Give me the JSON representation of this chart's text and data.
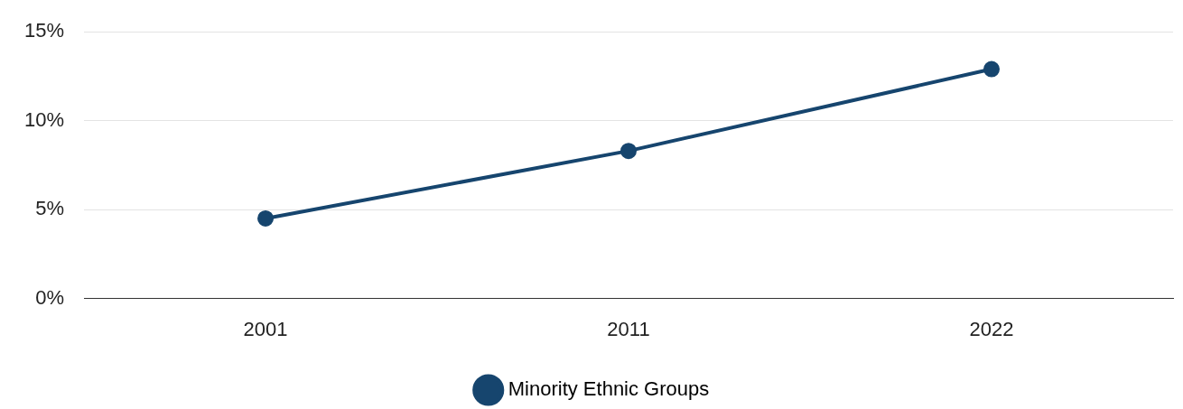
{
  "chart_data": {
    "type": "line",
    "categories": [
      "2001",
      "2011",
      "2022"
    ],
    "series": [
      {
        "name": "Minority Ethnic Groups",
        "color": "#16456e",
        "values": [
          4.5,
          8.3,
          12.9
        ]
      }
    ],
    "ylim": [
      0,
      15
    ],
    "yticks": [
      {
        "value": 0,
        "label": "0%"
      },
      {
        "value": 5,
        "label": "5%"
      },
      {
        "value": 10,
        "label": "10%"
      },
      {
        "value": 15,
        "label": "15%"
      }
    ],
    "grid": "y",
    "legend": "bottom",
    "marker": "circle",
    "line_style": "solid"
  }
}
